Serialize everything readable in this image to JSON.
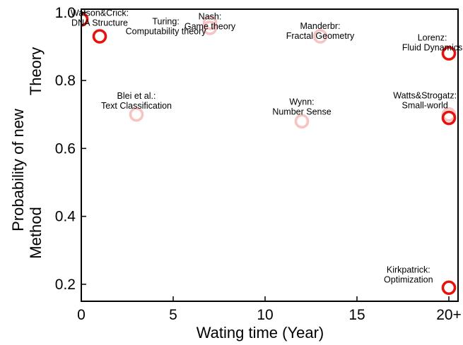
{
  "chart_data": {
    "type": "scatter",
    "xlabel": "Wating time (Year)",
    "ylabel_lines": [
      "Probability of new",
      "Theory",
      "Method"
    ],
    "xlim": [
      0,
      20.5
    ],
    "ylim": [
      0.15,
      1.01
    ],
    "x_ticks": [
      {
        "value": 0,
        "label": "0"
      },
      {
        "value": 5,
        "label": "5"
      },
      {
        "value": 10,
        "label": "10"
      },
      {
        "value": 15,
        "label": "15"
      },
      {
        "value": 20,
        "label": "20+"
      }
    ],
    "y_ticks": [
      {
        "value": 0.2,
        "label": "0.2"
      },
      {
        "value": 0.4,
        "label": "0.4"
      },
      {
        "value": 0.6,
        "label": "0.6"
      },
      {
        "value": 0.8,
        "label": "0.8"
      },
      {
        "value": 1.0,
        "label": "1.0"
      }
    ],
    "colors": {
      "theory": "#e8120c",
      "method": "#f7c3c3"
    },
    "points": [
      {
        "x": 0,
        "y": 0.98,
        "kind": "theory"
      },
      {
        "x": 1,
        "y": 0.93,
        "kind": "theory"
      },
      {
        "x": 7,
        "y": 0.97,
        "kind": "method"
      },
      {
        "x": 7,
        "y": 0.955,
        "kind": "method"
      },
      {
        "x": 13,
        "y": 0.93,
        "kind": "method"
      },
      {
        "x": 20,
        "y": 0.88,
        "kind": "theory"
      },
      {
        "x": 3,
        "y": 0.7,
        "kind": "method"
      },
      {
        "x": 12,
        "y": 0.68,
        "kind": "method"
      },
      {
        "x": 20,
        "y": 0.69,
        "kind": "theory"
      },
      {
        "x": 20,
        "y": 0.7,
        "kind": "method"
      },
      {
        "x": 20,
        "y": 0.19,
        "kind": "theory"
      }
    ],
    "annotations": [
      {
        "lines": [
          "Watson&Crick:",
          "DNA Structure"
        ],
        "x": 1.0,
        "y": 0.99
      },
      {
        "lines": [
          "Turing:",
          "Computability theory"
        ],
        "x": 4.6,
        "y": 0.965
      },
      {
        "lines": [
          "Nash:",
          "Game theory"
        ],
        "x": 7.0,
        "y": 0.98
      },
      {
        "lines": [
          "Manderbr:",
          "Fractal Geometry"
        ],
        "x": 13.0,
        "y": 0.952
      },
      {
        "lines": [
          "Lorenz:",
          "Fluid Dynamics"
        ],
        "x": 19.1,
        "y": 0.918
      },
      {
        "lines": [
          "Watts&Strogatz:",
          "Small-world"
        ],
        "x": 18.7,
        "y": 0.747
      },
      {
        "lines": [
          "Blei et al.:",
          "Text Classification"
        ],
        "x": 3.0,
        "y": 0.746
      },
      {
        "lines": [
          "Wynn:",
          "Number Sense"
        ],
        "x": 12.0,
        "y": 0.729
      },
      {
        "lines": [
          "Kirkpatrick:",
          "Optimization"
        ],
        "x": 17.8,
        "y": 0.234
      }
    ]
  }
}
